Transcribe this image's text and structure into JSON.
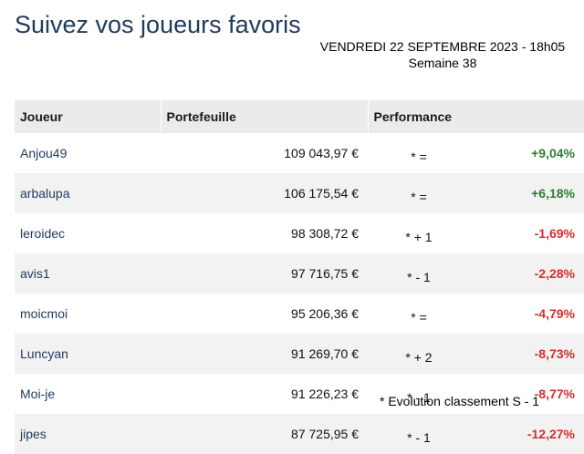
{
  "title": "Suivez vos joueurs favoris",
  "date_line": "VENDREDI 22 SEPTEMBRE 2023 - 18h05",
  "week_line": "Semaine 38",
  "headers": {
    "joueur": "Joueur",
    "portefeuille": "Portefeuille",
    "performance": "Performance"
  },
  "colors": {
    "positive": "#2e7d32",
    "negative": "#d32f2f",
    "title": "#1f3b5c"
  },
  "rows": [
    {
      "name": "Anjou49",
      "portfolio": "109 043,97 €",
      "rank_change": "*  =",
      "performance": "+9,04%",
      "trend": "pos"
    },
    {
      "name": "arbalupa",
      "portfolio": "106 175,54 €",
      "rank_change": "*  =",
      "performance": "+6,18%",
      "trend": "pos"
    },
    {
      "name": "leroidec",
      "portfolio": "98 308,72 €",
      "rank_change": "* + 1",
      "performance": "-1,69%",
      "trend": "neg"
    },
    {
      "name": "avis1",
      "portfolio": "97 716,75 €",
      "rank_change": "* - 1",
      "performance": "-2,28%",
      "trend": "neg"
    },
    {
      "name": "moicmoi",
      "portfolio": "95 206,36 €",
      "rank_change": "*  =",
      "performance": "-4,79%",
      "trend": "neg"
    },
    {
      "name": "Luncyan",
      "portfolio": "91 269,70 €",
      "rank_change": "* + 2",
      "performance": "-8,73%",
      "trend": "neg"
    },
    {
      "name": "Moi-je",
      "portfolio": "91 226,23 €",
      "rank_change": "* - 1",
      "performance": "-8,77%",
      "trend": "neg"
    },
    {
      "name": "jipes",
      "portfolio": "87 725,95 €",
      "rank_change": "* - 1",
      "performance": "-12,27%",
      "trend": "neg"
    }
  ],
  "footnote": "* Evolution classement S - 1"
}
